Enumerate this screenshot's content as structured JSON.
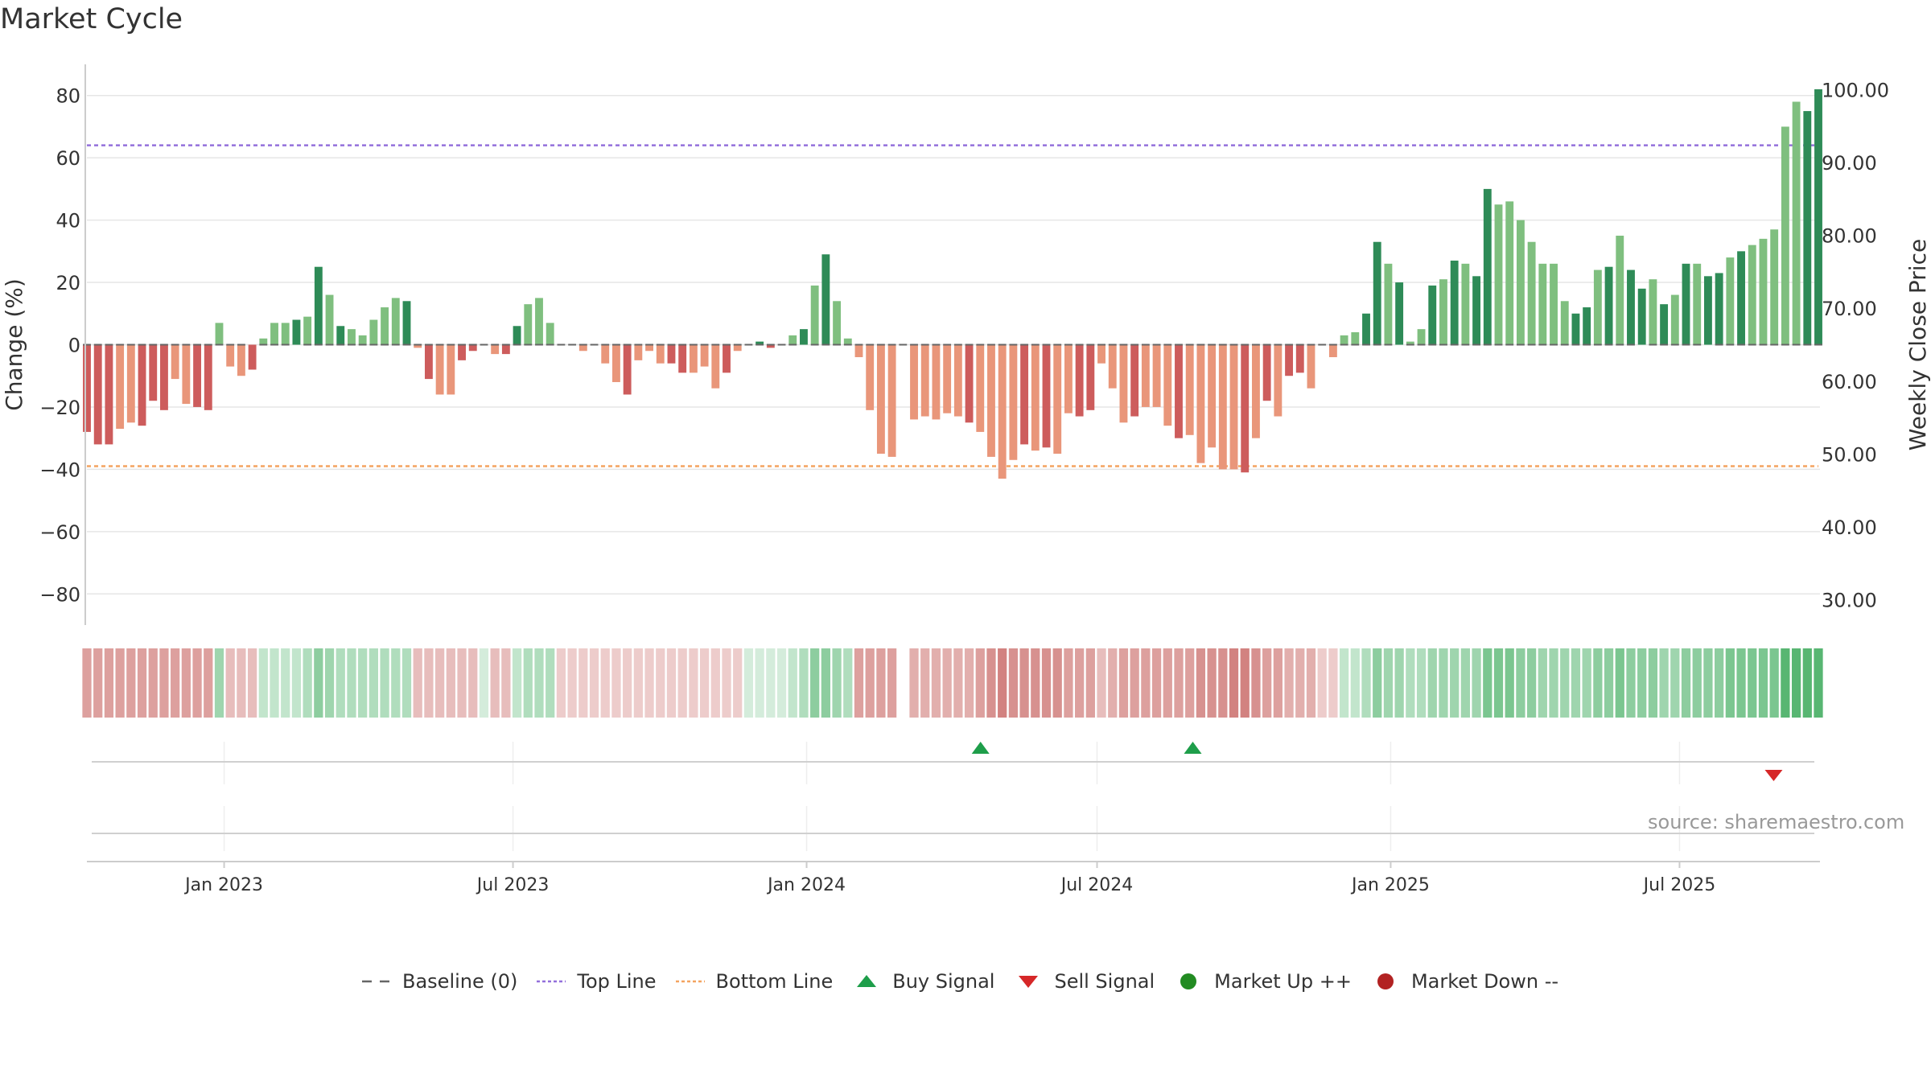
{
  "title": "Market Cycle",
  "source_text": "source: sharemaestro.com",
  "chart_data": {
    "type": "bar",
    "title": "Market Cycle",
    "ylabel": "Change (%)",
    "y2label": "Weekly Close Price",
    "ylim": [
      -90,
      90
    ],
    "y2lim": [
      26.5,
      103.5
    ],
    "yticks": [
      80,
      60,
      40,
      20,
      0,
      -20,
      -40,
      -60,
      -80
    ],
    "ytick_labels": [
      "80",
      "60",
      "40",
      "20",
      "0",
      "−20",
      "−40",
      "−60",
      "−80"
    ],
    "y2ticks": [
      100,
      90,
      80,
      70,
      60,
      50,
      40,
      30
    ],
    "y2tick_labels": [
      "100.00",
      "90.00",
      "80.00",
      "70.00",
      "60.00",
      "50.00",
      "40.00",
      "30.00"
    ],
    "x_start": "2022-10-07",
    "x_end": "2025-09-26",
    "xticks": [
      {
        "label": "Jan 2023",
        "date": "2023-01-01"
      },
      {
        "label": "Jul 2023",
        "date": "2023-07-01"
      },
      {
        "label": "Jan 2024",
        "date": "2024-01-01"
      },
      {
        "label": "Jul 2024",
        "date": "2024-07-01"
      },
      {
        "label": "Jan 2025",
        "date": "2025-01-01"
      },
      {
        "label": "Jul 2025",
        "date": "2025-07-01"
      }
    ],
    "top_line": 64,
    "bottom_line": -39,
    "baseline": 0,
    "grid": true,
    "values": [
      -28,
      -32,
      -32,
      -27,
      -25,
      -26,
      -18,
      -21,
      -11,
      -19,
      -20,
      -21,
      7,
      -7,
      -10,
      -8,
      2,
      7,
      7,
      8,
      9,
      25,
      16,
      6,
      5,
      3,
      8,
      12,
      15,
      14,
      -1,
      -11,
      -16,
      -16,
      -5,
      -2,
      0,
      -3,
      -3,
      6,
      13,
      15,
      7,
      0,
      0,
      -2,
      0,
      -6,
      -12,
      -16,
      -5,
      -2,
      -6,
      -6,
      -9,
      -9,
      -7,
      -14,
      -9,
      -2,
      0,
      1,
      -1,
      0,
      3,
      5,
      19,
      29,
      14,
      2,
      -4,
      -21,
      -35,
      -36,
      0,
      -24,
      -23,
      -24,
      -22,
      -23,
      -25,
      -28,
      -36,
      -43,
      -37,
      -32,
      -34,
      -33,
      -35,
      -22,
      -23,
      -21,
      -6,
      -14,
      -25,
      -23,
      -20,
      -20,
      -26,
      -30,
      -29,
      -38,
      -33,
      -40,
      -40,
      -41,
      -30,
      -18,
      -23,
      -10,
      -9,
      -14,
      0,
      -4,
      3,
      4,
      10,
      33,
      26,
      20,
      1,
      5,
      19,
      21,
      27,
      26,
      22,
      50,
      45,
      46,
      40,
      33,
      26,
      26,
      14,
      10,
      12,
      24,
      25,
      35,
      24,
      18,
      21,
      13,
      16,
      26,
      26,
      22,
      23,
      28,
      30,
      32,
      34,
      37,
      70,
      78,
      75,
      82
    ],
    "bar_tones": "000110001100111211121010111110101100010011101111101110011101100212101111111111110111101011001110111011111010100101110012110101001111111001010210101201011111",
    "strip_levels": [
      -5,
      -5,
      -5,
      -5,
      -5,
      -5,
      -5,
      -5,
      -5,
      -5,
      -5,
      -5,
      4,
      -3,
      -3,
      -3,
      2,
      2,
      2,
      2,
      3,
      5,
      4,
      3,
      3,
      3,
      3,
      3,
      3,
      3,
      -3,
      -3,
      -3,
      -3,
      -3,
      -3,
      1,
      -3,
      -3,
      2,
      3,
      3,
      3,
      -2,
      -2,
      -2,
      -2,
      -2,
      -2,
      -2,
      -2,
      -2,
      -2,
      -2,
      -2,
      -2,
      -2,
      -2,
      -2,
      -2,
      1,
      1,
      1,
      1,
      2,
      3,
      5,
      5,
      4,
      3,
      -5,
      -5,
      -5,
      -5,
      null,
      -4,
      -4,
      -4,
      -4,
      -4,
      -4,
      -5,
      -6,
      -7,
      -6,
      -6,
      -6,
      -6,
      -6,
      -5,
      -5,
      -5,
      -3,
      -4,
      -5,
      -5,
      -5,
      -5,
      -5,
      -5,
      -5,
      -6,
      -6,
      -6,
      -7,
      -7,
      -6,
      -5,
      -5,
      -4,
      -4,
      -4,
      -2,
      -2,
      2,
      2,
      3,
      5,
      4,
      4,
      3,
      3,
      4,
      4,
      4,
      4,
      4,
      6,
      6,
      6,
      5,
      5,
      4,
      4,
      4,
      4,
      4,
      5,
      5,
      6,
      5,
      5,
      5,
      4,
      4,
      5,
      5,
      5,
      5,
      6,
      6,
      6,
      6,
      6,
      8,
      8,
      8,
      8
    ],
    "series": [
      {
        "name": "Baseline (0)",
        "value": 0
      },
      {
        "name": "Top Line",
        "value": 64
      },
      {
        "name": "Bottom Line",
        "value": -39
      }
    ],
    "buy_signals": [
      "2024-04-19",
      "2024-08-30"
    ],
    "sell_signals": [
      "2025-08-29"
    ],
    "legend_position": "bottom"
  },
  "legend": [
    {
      "label": "Baseline (0)",
      "symbol": "dash-gray"
    },
    {
      "label": "Top Line",
      "symbol": "dot-purple"
    },
    {
      "label": "Bottom Line",
      "symbol": "dot-orange"
    },
    {
      "label": "Buy Signal",
      "symbol": "triangle-up"
    },
    {
      "label": "Sell Signal",
      "symbol": "triangle-down"
    },
    {
      "label": "Market Up ++",
      "symbol": "circle-green"
    },
    {
      "label": "Market Down --",
      "symbol": "circle-red"
    }
  ],
  "colors": {
    "pos_dark": "#2e8b57",
    "pos_light": "#7fbf7f",
    "neg_dark": "#cd5c5c",
    "neg_light": "#e9967a",
    "top_line": "#9370db",
    "bottom_line": "#f4a460",
    "baseline": "#666666",
    "buy": "#1e9e4a",
    "sell": "#d62728",
    "market_up": "#228b22",
    "market_down": "#b22222",
    "grid": "#e6e6e6",
    "axis": "#cccccc",
    "text": "#333333"
  }
}
